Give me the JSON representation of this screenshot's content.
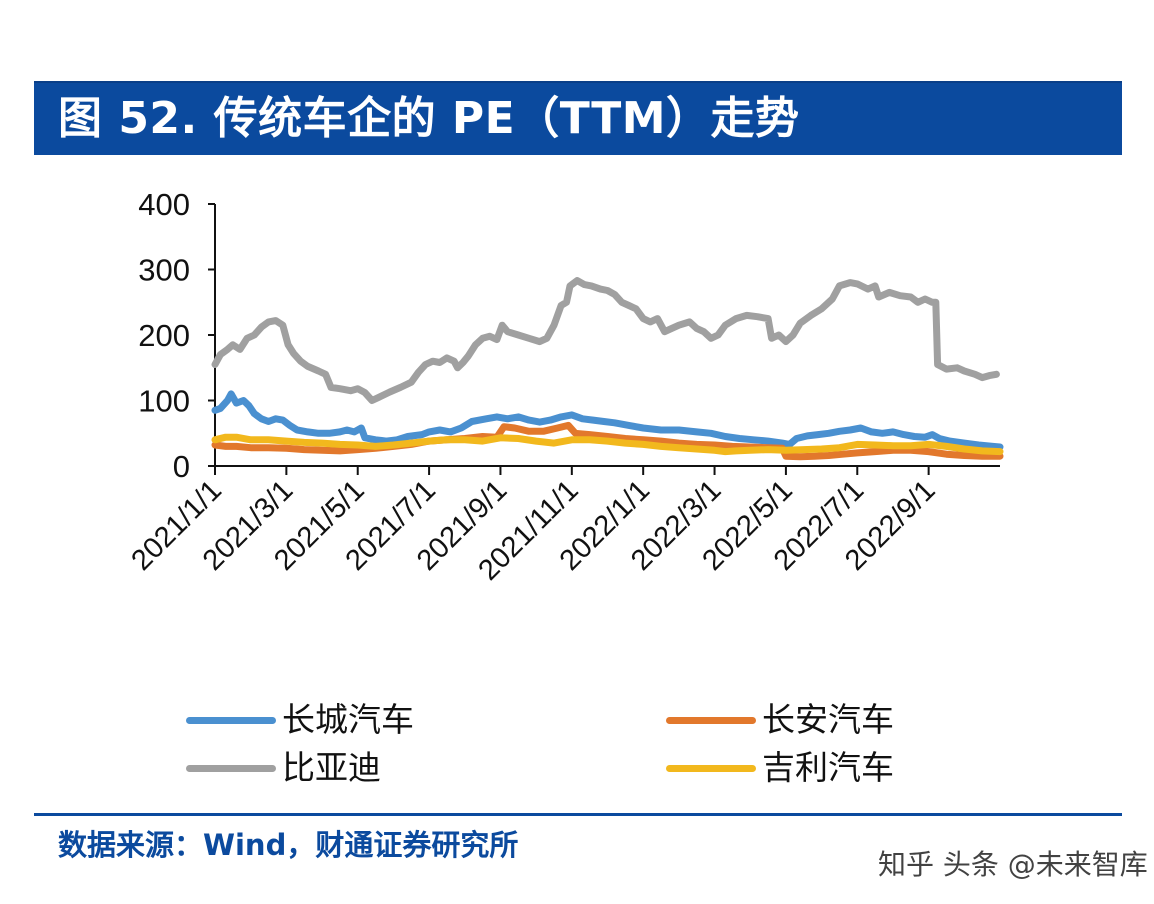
{
  "header": {
    "title": "图 52. 传统车企的 PE（TTM）走势"
  },
  "footer": {
    "source": "数据来源：Wind，财通证券研究所",
    "watermark": "知乎 头条 @未来智库"
  },
  "chart_data": {
    "type": "line",
    "title": "图 52. 传统车企的 PE（TTM）走势",
    "xlabel": "",
    "ylabel": "",
    "ylim": [
      0,
      400
    ],
    "yticks": [
      "0",
      "100",
      "200",
      "300",
      "400"
    ],
    "ytick_values": [
      0,
      100,
      200,
      300,
      400
    ],
    "x_unit": "months since 2021/1/1",
    "xlim": [
      0,
      22
    ],
    "xticks": [
      "2021/1/1",
      "2021/3/1",
      "2021/5/1",
      "2021/7/1",
      "2021/9/1",
      "2021/11/1",
      "2022/1/1",
      "2022/3/1",
      "2022/5/1",
      "2022/7/1",
      "2022/9/1"
    ],
    "xtick_values": [
      0,
      2,
      4,
      6,
      8,
      10,
      12,
      14,
      16,
      18,
      20
    ],
    "grid": false,
    "legend_position": "bottom",
    "series": [
      {
        "name": "长城汽车",
        "color": "#4a90d0",
        "points": [
          [
            0,
            85
          ],
          [
            0.15,
            88
          ],
          [
            0.35,
            100
          ],
          [
            0.45,
            110
          ],
          [
            0.6,
            96
          ],
          [
            0.8,
            100
          ],
          [
            0.95,
            92
          ],
          [
            1.1,
            80
          ],
          [
            1.3,
            72
          ],
          [
            1.5,
            68
          ],
          [
            1.7,
            72
          ],
          [
            1.9,
            70
          ],
          [
            2.1,
            62
          ],
          [
            2.3,
            55
          ],
          [
            2.6,
            52
          ],
          [
            2.9,
            50
          ],
          [
            3.2,
            50
          ],
          [
            3.5,
            52
          ],
          [
            3.7,
            55
          ],
          [
            3.9,
            52
          ],
          [
            4.1,
            58
          ],
          [
            4.2,
            43
          ],
          [
            4.5,
            40
          ],
          [
            4.8,
            38
          ],
          [
            5.1,
            40
          ],
          [
            5.4,
            45
          ],
          [
            5.8,
            48
          ],
          [
            6.0,
            52
          ],
          [
            6.3,
            55
          ],
          [
            6.6,
            52
          ],
          [
            6.9,
            58
          ],
          [
            7.2,
            68
          ],
          [
            7.6,
            72
          ],
          [
            7.9,
            75
          ],
          [
            8.2,
            72
          ],
          [
            8.5,
            75
          ],
          [
            8.8,
            70
          ],
          [
            9.1,
            67
          ],
          [
            9.4,
            70
          ],
          [
            9.7,
            75
          ],
          [
            10.0,
            78
          ],
          [
            10.3,
            72
          ],
          [
            10.6,
            70
          ],
          [
            10.9,
            68
          ],
          [
            11.2,
            66
          ],
          [
            11.6,
            62
          ],
          [
            12.0,
            58
          ],
          [
            12.5,
            55
          ],
          [
            13.0,
            55
          ],
          [
            13.5,
            52
          ],
          [
            13.9,
            50
          ],
          [
            14.3,
            45
          ],
          [
            14.7,
            42
          ],
          [
            15.1,
            40
          ],
          [
            15.5,
            38
          ],
          [
            15.9,
            35
          ],
          [
            16.1,
            33
          ],
          [
            16.3,
            42
          ],
          [
            16.6,
            46
          ],
          [
            16.9,
            48
          ],
          [
            17.2,
            50
          ],
          [
            17.5,
            53
          ],
          [
            17.8,
            55
          ],
          [
            18.1,
            58
          ],
          [
            18.4,
            52
          ],
          [
            18.7,
            50
          ],
          [
            19.0,
            52
          ],
          [
            19.3,
            48
          ],
          [
            19.6,
            45
          ],
          [
            19.9,
            44
          ],
          [
            20.1,
            48
          ],
          [
            20.3,
            42
          ],
          [
            20.6,
            38
          ],
          [
            21.0,
            35
          ],
          [
            21.4,
            32
          ],
          [
            21.8,
            30
          ],
          [
            22,
            29
          ]
        ]
      },
      {
        "name": "长安汽车",
        "color": "#e2782c",
        "points": [
          [
            0,
            32
          ],
          [
            0.3,
            30
          ],
          [
            0.6,
            30
          ],
          [
            1.0,
            28
          ],
          [
            1.5,
            28
          ],
          [
            2.0,
            27
          ],
          [
            2.5,
            25
          ],
          [
            3.0,
            24
          ],
          [
            3.5,
            23
          ],
          [
            4.0,
            25
          ],
          [
            4.5,
            27
          ],
          [
            5.0,
            30
          ],
          [
            5.5,
            33
          ],
          [
            6.0,
            38
          ],
          [
            6.5,
            40
          ],
          [
            7.0,
            42
          ],
          [
            7.5,
            45
          ],
          [
            7.9,
            44
          ],
          [
            8.1,
            60
          ],
          [
            8.4,
            58
          ],
          [
            8.8,
            53
          ],
          [
            9.2,
            53
          ],
          [
            9.6,
            58
          ],
          [
            9.9,
            62
          ],
          [
            10.1,
            50
          ],
          [
            10.5,
            48
          ],
          [
            11.0,
            45
          ],
          [
            11.5,
            42
          ],
          [
            12.0,
            40
          ],
          [
            12.5,
            38
          ],
          [
            13.0,
            35
          ],
          [
            13.5,
            33
          ],
          [
            14.0,
            32
          ],
          [
            14.5,
            30
          ],
          [
            15.0,
            29
          ],
          [
            15.5,
            28
          ],
          [
            15.9,
            27
          ],
          [
            16.0,
            15
          ],
          [
            16.4,
            14
          ],
          [
            16.8,
            15
          ],
          [
            17.2,
            16
          ],
          [
            17.6,
            18
          ],
          [
            18.0,
            20
          ],
          [
            18.5,
            22
          ],
          [
            19.0,
            24
          ],
          [
            19.5,
            24
          ],
          [
            20.0,
            22
          ],
          [
            20.5,
            18
          ],
          [
            21.0,
            16
          ],
          [
            21.5,
            15
          ],
          [
            22,
            15
          ]
        ]
      },
      {
        "name": "比亚迪",
        "color": "#a0a0a0",
        "points": [
          [
            0,
            155
          ],
          [
            0.15,
            170
          ],
          [
            0.35,
            178
          ],
          [
            0.5,
            185
          ],
          [
            0.7,
            178
          ],
          [
            0.9,
            195
          ],
          [
            1.1,
            200
          ],
          [
            1.3,
            212
          ],
          [
            1.5,
            220
          ],
          [
            1.7,
            222
          ],
          [
            1.9,
            215
          ],
          [
            2.05,
            185
          ],
          [
            2.2,
            172
          ],
          [
            2.4,
            160
          ],
          [
            2.6,
            152
          ],
          [
            2.9,
            145
          ],
          [
            3.1,
            140
          ],
          [
            3.25,
            120
          ],
          [
            3.5,
            118
          ],
          [
            3.8,
            115
          ],
          [
            4.0,
            118
          ],
          [
            4.2,
            112
          ],
          [
            4.4,
            100
          ],
          [
            4.6,
            105
          ],
          [
            4.9,
            113
          ],
          [
            5.2,
            120
          ],
          [
            5.5,
            128
          ],
          [
            5.7,
            143
          ],
          [
            5.9,
            155
          ],
          [
            6.1,
            160
          ],
          [
            6.3,
            158
          ],
          [
            6.5,
            165
          ],
          [
            6.7,
            160
          ],
          [
            6.8,
            150
          ],
          [
            6.95,
            158
          ],
          [
            7.1,
            168
          ],
          [
            7.3,
            185
          ],
          [
            7.5,
            195
          ],
          [
            7.7,
            198
          ],
          [
            7.9,
            193
          ],
          [
            8.05,
            215
          ],
          [
            8.2,
            205
          ],
          [
            8.5,
            200
          ],
          [
            8.8,
            195
          ],
          [
            9.1,
            190
          ],
          [
            9.3,
            195
          ],
          [
            9.5,
            215
          ],
          [
            9.7,
            245
          ],
          [
            9.85,
            250
          ],
          [
            9.95,
            275
          ],
          [
            10.15,
            283
          ],
          [
            10.35,
            277
          ],
          [
            10.55,
            275
          ],
          [
            10.8,
            270
          ],
          [
            11.0,
            268
          ],
          [
            11.2,
            262
          ],
          [
            11.4,
            250
          ],
          [
            11.6,
            245
          ],
          [
            11.8,
            240
          ],
          [
            12.0,
            225
          ],
          [
            12.2,
            220
          ],
          [
            12.4,
            225
          ],
          [
            12.6,
            205
          ],
          [
            12.8,
            210
          ],
          [
            13.0,
            215
          ],
          [
            13.3,
            220
          ],
          [
            13.5,
            210
          ],
          [
            13.7,
            205
          ],
          [
            13.9,
            195
          ],
          [
            14.1,
            200
          ],
          [
            14.3,
            215
          ],
          [
            14.6,
            225
          ],
          [
            14.9,
            230
          ],
          [
            15.2,
            228
          ],
          [
            15.5,
            225
          ],
          [
            15.6,
            195
          ],
          [
            15.8,
            200
          ],
          [
            16.0,
            190
          ],
          [
            16.2,
            200
          ],
          [
            16.4,
            218
          ],
          [
            16.7,
            230
          ],
          [
            17.0,
            240
          ],
          [
            17.3,
            255
          ],
          [
            17.5,
            275
          ],
          [
            17.8,
            280
          ],
          [
            18.0,
            278
          ],
          [
            18.3,
            270
          ],
          [
            18.5,
            275
          ],
          [
            18.6,
            258
          ],
          [
            18.9,
            265
          ],
          [
            19.2,
            260
          ],
          [
            19.5,
            258
          ],
          [
            19.7,
            250
          ],
          [
            19.9,
            255
          ],
          [
            20.1,
            250
          ],
          [
            20.2,
            250
          ],
          [
            20.25,
            155
          ],
          [
            20.5,
            148
          ],
          [
            20.8,
            150
          ],
          [
            21.0,
            145
          ],
          [
            21.3,
            140
          ],
          [
            21.5,
            135
          ],
          [
            21.7,
            138
          ],
          [
            21.9,
            140
          ]
        ]
      },
      {
        "name": "吉利汽车",
        "color": "#f2b81d",
        "points": [
          [
            0,
            40
          ],
          [
            0.3,
            44
          ],
          [
            0.6,
            44
          ],
          [
            1.0,
            40
          ],
          [
            1.5,
            40
          ],
          [
            2.0,
            38
          ],
          [
            2.5,
            36
          ],
          [
            3.0,
            35
          ],
          [
            3.5,
            33
          ],
          [
            4.0,
            32
          ],
          [
            4.5,
            30
          ],
          [
            5.0,
            32
          ],
          [
            5.5,
            35
          ],
          [
            6.0,
            38
          ],
          [
            6.5,
            40
          ],
          [
            7.0,
            40
          ],
          [
            7.5,
            38
          ],
          [
            8.0,
            43
          ],
          [
            8.5,
            42
          ],
          [
            9.0,
            38
          ],
          [
            9.5,
            35
          ],
          [
            10.0,
            40
          ],
          [
            10.5,
            40
          ],
          [
            11.0,
            38
          ],
          [
            11.5,
            35
          ],
          [
            12.0,
            33
          ],
          [
            12.5,
            30
          ],
          [
            13.0,
            28
          ],
          [
            13.5,
            26
          ],
          [
            14.0,
            24
          ],
          [
            14.3,
            22
          ],
          [
            14.6,
            23
          ],
          [
            15.0,
            24
          ],
          [
            15.5,
            25
          ],
          [
            16.0,
            24
          ],
          [
            16.5,
            25
          ],
          [
            17.0,
            26
          ],
          [
            17.5,
            28
          ],
          [
            18.0,
            33
          ],
          [
            18.5,
            32
          ],
          [
            19.0,
            31
          ],
          [
            19.5,
            31
          ],
          [
            20.0,
            33
          ],
          [
            20.5,
            30
          ],
          [
            21.0,
            26
          ],
          [
            21.5,
            23
          ],
          [
            22,
            22
          ]
        ]
      }
    ]
  }
}
